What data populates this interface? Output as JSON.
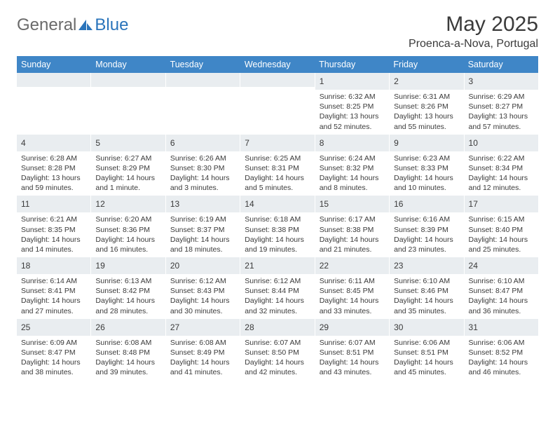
{
  "logo": {
    "general": "General",
    "blue": "Blue"
  },
  "header": {
    "title": "May 2025",
    "subtitle": "Proenca-a-Nova, Portugal"
  },
  "colors": {
    "header_bg": "#3f86c7",
    "header_text": "#ffffff",
    "daynum_bg": "#e9edf0",
    "text": "#3a3a3a",
    "logo_gray": "#6a6a6a",
    "logo_blue": "#2a74bb"
  },
  "day_names": [
    "Sunday",
    "Monday",
    "Tuesday",
    "Wednesday",
    "Thursday",
    "Friday",
    "Saturday"
  ],
  "weeks": [
    [
      {
        "day": "",
        "sunrise": "",
        "sunset": "",
        "daylight": ""
      },
      {
        "day": "",
        "sunrise": "",
        "sunset": "",
        "daylight": ""
      },
      {
        "day": "",
        "sunrise": "",
        "sunset": "",
        "daylight": ""
      },
      {
        "day": "",
        "sunrise": "",
        "sunset": "",
        "daylight": ""
      },
      {
        "day": "1",
        "sunrise": "Sunrise: 6:32 AM",
        "sunset": "Sunset: 8:25 PM",
        "daylight": "Daylight: 13 hours and 52 minutes."
      },
      {
        "day": "2",
        "sunrise": "Sunrise: 6:31 AM",
        "sunset": "Sunset: 8:26 PM",
        "daylight": "Daylight: 13 hours and 55 minutes."
      },
      {
        "day": "3",
        "sunrise": "Sunrise: 6:29 AM",
        "sunset": "Sunset: 8:27 PM",
        "daylight": "Daylight: 13 hours and 57 minutes."
      }
    ],
    [
      {
        "day": "4",
        "sunrise": "Sunrise: 6:28 AM",
        "sunset": "Sunset: 8:28 PM",
        "daylight": "Daylight: 13 hours and 59 minutes."
      },
      {
        "day": "5",
        "sunrise": "Sunrise: 6:27 AM",
        "sunset": "Sunset: 8:29 PM",
        "daylight": "Daylight: 14 hours and 1 minute."
      },
      {
        "day": "6",
        "sunrise": "Sunrise: 6:26 AM",
        "sunset": "Sunset: 8:30 PM",
        "daylight": "Daylight: 14 hours and 3 minutes."
      },
      {
        "day": "7",
        "sunrise": "Sunrise: 6:25 AM",
        "sunset": "Sunset: 8:31 PM",
        "daylight": "Daylight: 14 hours and 5 minutes."
      },
      {
        "day": "8",
        "sunrise": "Sunrise: 6:24 AM",
        "sunset": "Sunset: 8:32 PM",
        "daylight": "Daylight: 14 hours and 8 minutes."
      },
      {
        "day": "9",
        "sunrise": "Sunrise: 6:23 AM",
        "sunset": "Sunset: 8:33 PM",
        "daylight": "Daylight: 14 hours and 10 minutes."
      },
      {
        "day": "10",
        "sunrise": "Sunrise: 6:22 AM",
        "sunset": "Sunset: 8:34 PM",
        "daylight": "Daylight: 14 hours and 12 minutes."
      }
    ],
    [
      {
        "day": "11",
        "sunrise": "Sunrise: 6:21 AM",
        "sunset": "Sunset: 8:35 PM",
        "daylight": "Daylight: 14 hours and 14 minutes."
      },
      {
        "day": "12",
        "sunrise": "Sunrise: 6:20 AM",
        "sunset": "Sunset: 8:36 PM",
        "daylight": "Daylight: 14 hours and 16 minutes."
      },
      {
        "day": "13",
        "sunrise": "Sunrise: 6:19 AM",
        "sunset": "Sunset: 8:37 PM",
        "daylight": "Daylight: 14 hours and 18 minutes."
      },
      {
        "day": "14",
        "sunrise": "Sunrise: 6:18 AM",
        "sunset": "Sunset: 8:38 PM",
        "daylight": "Daylight: 14 hours and 19 minutes."
      },
      {
        "day": "15",
        "sunrise": "Sunrise: 6:17 AM",
        "sunset": "Sunset: 8:38 PM",
        "daylight": "Daylight: 14 hours and 21 minutes."
      },
      {
        "day": "16",
        "sunrise": "Sunrise: 6:16 AM",
        "sunset": "Sunset: 8:39 PM",
        "daylight": "Daylight: 14 hours and 23 minutes."
      },
      {
        "day": "17",
        "sunrise": "Sunrise: 6:15 AM",
        "sunset": "Sunset: 8:40 PM",
        "daylight": "Daylight: 14 hours and 25 minutes."
      }
    ],
    [
      {
        "day": "18",
        "sunrise": "Sunrise: 6:14 AM",
        "sunset": "Sunset: 8:41 PM",
        "daylight": "Daylight: 14 hours and 27 minutes."
      },
      {
        "day": "19",
        "sunrise": "Sunrise: 6:13 AM",
        "sunset": "Sunset: 8:42 PM",
        "daylight": "Daylight: 14 hours and 28 minutes."
      },
      {
        "day": "20",
        "sunrise": "Sunrise: 6:12 AM",
        "sunset": "Sunset: 8:43 PM",
        "daylight": "Daylight: 14 hours and 30 minutes."
      },
      {
        "day": "21",
        "sunrise": "Sunrise: 6:12 AM",
        "sunset": "Sunset: 8:44 PM",
        "daylight": "Daylight: 14 hours and 32 minutes."
      },
      {
        "day": "22",
        "sunrise": "Sunrise: 6:11 AM",
        "sunset": "Sunset: 8:45 PM",
        "daylight": "Daylight: 14 hours and 33 minutes."
      },
      {
        "day": "23",
        "sunrise": "Sunrise: 6:10 AM",
        "sunset": "Sunset: 8:46 PM",
        "daylight": "Daylight: 14 hours and 35 minutes."
      },
      {
        "day": "24",
        "sunrise": "Sunrise: 6:10 AM",
        "sunset": "Sunset: 8:47 PM",
        "daylight": "Daylight: 14 hours and 36 minutes."
      }
    ],
    [
      {
        "day": "25",
        "sunrise": "Sunrise: 6:09 AM",
        "sunset": "Sunset: 8:47 PM",
        "daylight": "Daylight: 14 hours and 38 minutes."
      },
      {
        "day": "26",
        "sunrise": "Sunrise: 6:08 AM",
        "sunset": "Sunset: 8:48 PM",
        "daylight": "Daylight: 14 hours and 39 minutes."
      },
      {
        "day": "27",
        "sunrise": "Sunrise: 6:08 AM",
        "sunset": "Sunset: 8:49 PM",
        "daylight": "Daylight: 14 hours and 41 minutes."
      },
      {
        "day": "28",
        "sunrise": "Sunrise: 6:07 AM",
        "sunset": "Sunset: 8:50 PM",
        "daylight": "Daylight: 14 hours and 42 minutes."
      },
      {
        "day": "29",
        "sunrise": "Sunrise: 6:07 AM",
        "sunset": "Sunset: 8:51 PM",
        "daylight": "Daylight: 14 hours and 43 minutes."
      },
      {
        "day": "30",
        "sunrise": "Sunrise: 6:06 AM",
        "sunset": "Sunset: 8:51 PM",
        "daylight": "Daylight: 14 hours and 45 minutes."
      },
      {
        "day": "31",
        "sunrise": "Sunrise: 6:06 AM",
        "sunset": "Sunset: 8:52 PM",
        "daylight": "Daylight: 14 hours and 46 minutes."
      }
    ]
  ]
}
